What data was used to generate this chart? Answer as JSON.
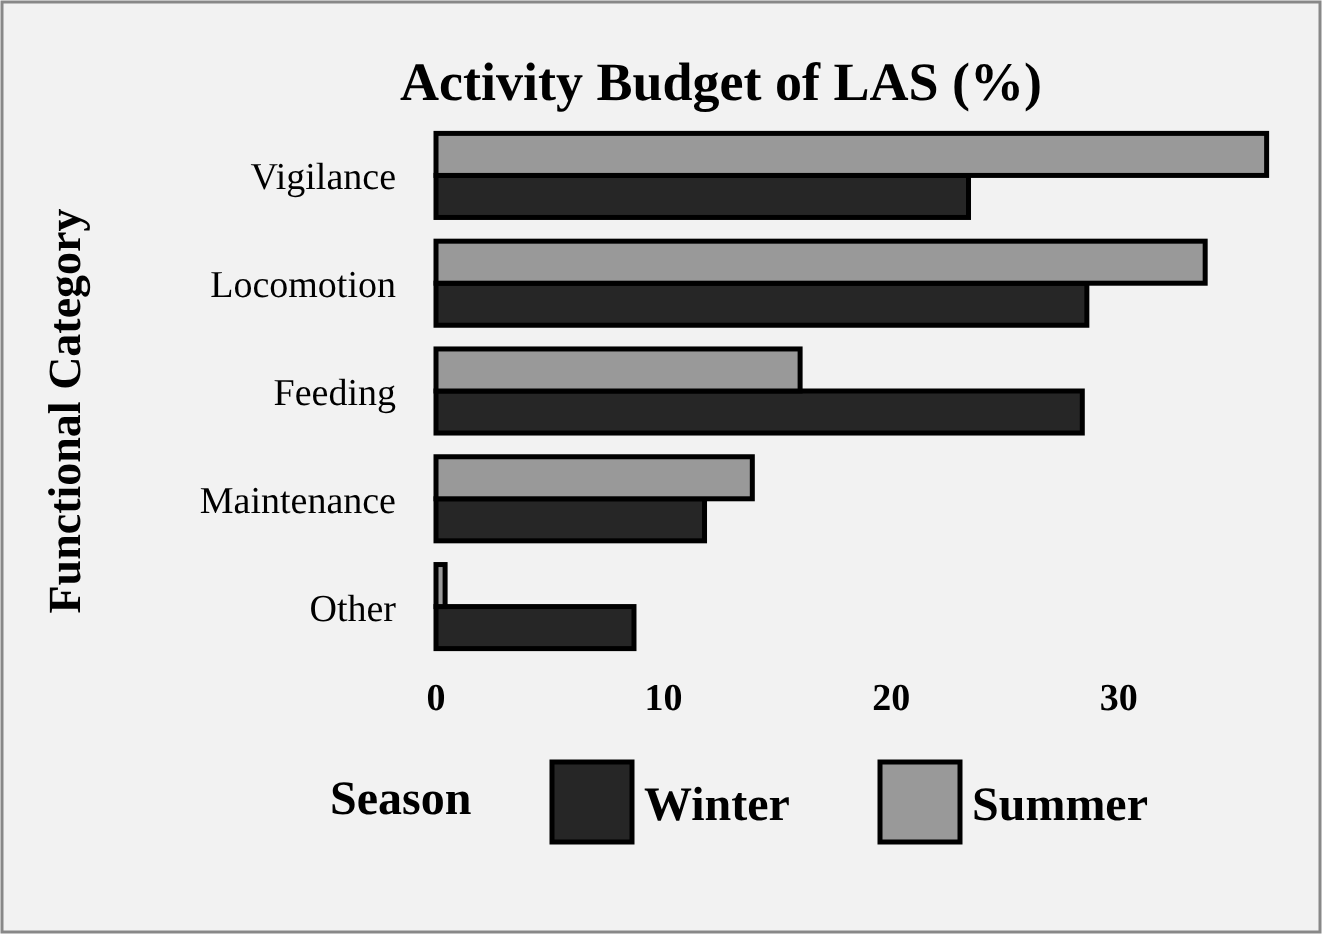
{
  "chart_data": {
    "type": "bar",
    "orientation": "horizontal",
    "title": "Activity Budget of LAS (%)",
    "ylabel": "Functional Category",
    "legend_title": "Season",
    "legend": "bottom",
    "categories": [
      "Vigilance",
      "Locomotion",
      "Feeding",
      "Maintenance",
      "Other"
    ],
    "series": [
      {
        "name": "Winter",
        "color": "#262626",
        "values": [
          23.4,
          28.6,
          28.4,
          11.8,
          8.7
        ]
      },
      {
        "name": "Summer",
        "color": "#999999",
        "values": [
          36.5,
          33.8,
          16.0,
          13.9,
          0.4
        ]
      }
    ],
    "xlim": [
      0,
      37
    ],
    "xticks": [
      0,
      10,
      20,
      30
    ]
  }
}
